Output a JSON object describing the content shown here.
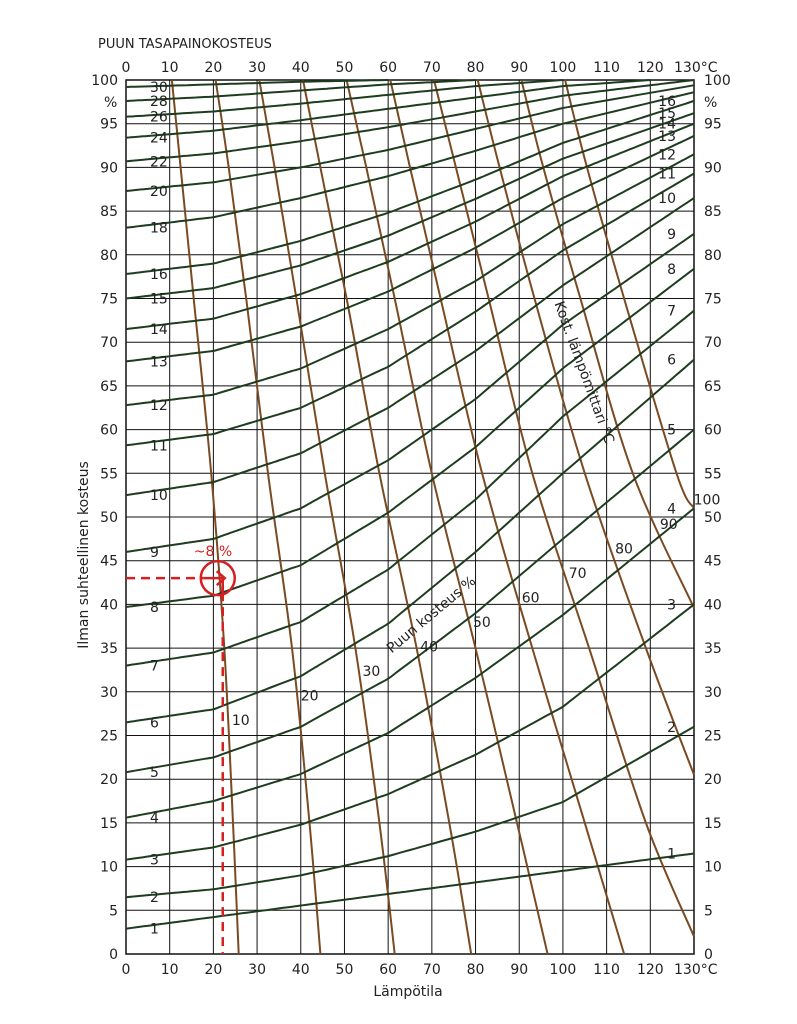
{
  "colors": {
    "background": "#ffffff",
    "grid": "#111111",
    "emc_curve": "#1e3d1e",
    "wetbulb_curve": "#7a4a22",
    "marker": "#d42020",
    "text": "#222222"
  },
  "chart_data": {
    "type": "line",
    "title": "PUUN TASAPAINOKOSTEUS",
    "xlabel": "Lämpötila",
    "ylabel": "Ilman suhteellinen kosteus",
    "xlim": [
      0,
      130
    ],
    "ylim": [
      0,
      100
    ],
    "x_unit_label": "130°C",
    "y_unit_label": "%",
    "x_ticks": [
      0,
      10,
      20,
      30,
      40,
      50,
      60,
      70,
      80,
      90,
      100,
      110,
      120
    ],
    "y_ticks": [
      0,
      5,
      10,
      15,
      20,
      25,
      30,
      35,
      40,
      45,
      50,
      55,
      60,
      65,
      70,
      75,
      80,
      85,
      90,
      95,
      100
    ],
    "x_tick_labels": [
      "0",
      "10",
      "20",
      "30",
      "40",
      "50",
      "60",
      "70",
      "80",
      "90",
      "100",
      "110",
      "120"
    ],
    "y_tick_labels": [
      "0",
      "5",
      "10",
      "15",
      "20",
      "25",
      "30",
      "35",
      "40",
      "45",
      "50",
      "55",
      "60",
      "65",
      "70",
      "75",
      "80",
      "85",
      "90",
      "95",
      "100"
    ],
    "grid": true,
    "emc_family_label": "Puun kosteus %",
    "wetbulb_family_label": "Kost. lämpömittari °C",
    "emc_series": [
      {
        "name": "1",
        "left_label": "1",
        "right_label": "1",
        "x": [
          0,
          130
        ],
        "y": [
          2.9,
          11.5
        ]
      },
      {
        "name": "2",
        "left_label": "2",
        "right_label": "2",
        "x": [
          0,
          20,
          40,
          60,
          80,
          100,
          130
        ],
        "y": [
          6.5,
          7.4,
          9.0,
          11.2,
          14.0,
          17.4,
          26.0
        ]
      },
      {
        "name": "3",
        "left_label": "3",
        "right_label": "3",
        "x": [
          0,
          20,
          40,
          60,
          80,
          100,
          130
        ],
        "y": [
          10.8,
          12.2,
          14.8,
          18.3,
          22.8,
          28.3,
          40.0
        ]
      },
      {
        "name": "4",
        "left_label": "4",
        "right_label": "4",
        "x": [
          0,
          20,
          40,
          60,
          80,
          100,
          130
        ],
        "y": [
          15.6,
          17.5,
          20.6,
          25.3,
          31.6,
          38.8,
          51.0
        ]
      },
      {
        "name": "5",
        "left_label": "5",
        "right_label": "5",
        "x": [
          0,
          20,
          40,
          60,
          80,
          100,
          130
        ],
        "y": [
          20.8,
          22.5,
          26.0,
          31.5,
          39.0,
          47.5,
          60.0
        ]
      },
      {
        "name": "6",
        "left_label": "6",
        "right_label": "6",
        "x": [
          0,
          20,
          40,
          60,
          80,
          100,
          130
        ],
        "y": [
          26.5,
          28.0,
          31.8,
          37.8,
          46.0,
          55.0,
          68.0
        ]
      },
      {
        "name": "7",
        "left_label": "7",
        "right_label": "7",
        "x": [
          0,
          20,
          40,
          60,
          80,
          100,
          130
        ],
        "y": [
          33.0,
          34.5,
          38.0,
          44.0,
          52.0,
          61.5,
          73.6
        ]
      },
      {
        "name": "8",
        "left_label": "8",
        "right_label": "8",
        "x": [
          0,
          20,
          40,
          60,
          80,
          100,
          130
        ],
        "y": [
          39.7,
          41.0,
          44.5,
          50.5,
          58.0,
          67.0,
          78.4
        ]
      },
      {
        "name": "9",
        "left_label": "9",
        "right_label": "9",
        "x": [
          0,
          20,
          40,
          60,
          80,
          100,
          130
        ],
        "y": [
          46.0,
          47.5,
          51.0,
          56.5,
          63.5,
          72.0,
          82.4
        ]
      },
      {
        "name": "10",
        "left_label": "10",
        "right_label": "10",
        "x": [
          0,
          20,
          40,
          60,
          80,
          100,
          130
        ],
        "y": [
          52.5,
          54.0,
          57.3,
          62.5,
          69.0,
          76.5,
          86.5
        ]
      },
      {
        "name": "11",
        "left_label": "11",
        "right_label": "11",
        "x": [
          0,
          20,
          40,
          60,
          80,
          100,
          130
        ],
        "y": [
          58.2,
          59.5,
          62.5,
          67.2,
          73.5,
          80.5,
          89.3
        ]
      },
      {
        "name": "12",
        "left_label": "12",
        "right_label": "12",
        "x": [
          0,
          20,
          40,
          60,
          80,
          100,
          130
        ],
        "y": [
          62.8,
          64.0,
          67.0,
          71.5,
          77.0,
          83.5,
          91.5
        ]
      },
      {
        "name": "13",
        "left_label": "13",
        "right_label": "13",
        "x": [
          0,
          20,
          40,
          60,
          80,
          100,
          130
        ],
        "y": [
          67.8,
          69.0,
          71.8,
          75.8,
          80.8,
          86.5,
          93.6
        ]
      },
      {
        "name": "14",
        "left_label": "14",
        "right_label": "14",
        "x": [
          0,
          20,
          40,
          60,
          80,
          100,
          130
        ],
        "y": [
          71.5,
          72.7,
          75.5,
          79.2,
          83.8,
          89.0,
          95.0
        ]
      },
      {
        "name": "15",
        "left_label": "15",
        "right_label": "15",
        "x": [
          0,
          20,
          40,
          60,
          80,
          100,
          130
        ],
        "y": [
          75.0,
          76.2,
          78.8,
          82.2,
          86.4,
          91.0,
          96.2
        ]
      },
      {
        "name": "16",
        "left_label": "16",
        "right_label": "16",
        "x": [
          0,
          20,
          40,
          60,
          80,
          100,
          130
        ],
        "y": [
          77.8,
          79.0,
          81.6,
          84.8,
          88.6,
          92.8,
          97.6
        ]
      },
      {
        "name": "18",
        "left_label": "18",
        "x": [
          0,
          20,
          40,
          60,
          80,
          100,
          130
        ],
        "y": [
          83.1,
          84.3,
          86.5,
          89.0,
          91.9,
          95.0,
          98.6
        ]
      },
      {
        "name": "20",
        "left_label": "20",
        "x": [
          0,
          20,
          40,
          60,
          80,
          100,
          130
        ],
        "y": [
          87.3,
          88.3,
          90.0,
          92.0,
          94.4,
          96.8,
          99.4
        ]
      },
      {
        "name": "22",
        "left_label": "22",
        "x": [
          0,
          20,
          40,
          60,
          80,
          100,
          130
        ],
        "y": [
          90.7,
          91.6,
          93.0,
          94.6,
          96.4,
          98.2,
          100.0
        ]
      },
      {
        "name": "24",
        "left_label": "24",
        "x": [
          0,
          20,
          40,
          60,
          80,
          100,
          120
        ],
        "y": [
          93.4,
          94.2,
          95.4,
          96.7,
          98.0,
          99.3,
          100.0
        ]
      },
      {
        "name": "26",
        "left_label": "26",
        "x": [
          0,
          20,
          40,
          60,
          80,
          100
        ],
        "y": [
          95.8,
          96.4,
          97.3,
          98.3,
          99.3,
          100.0
        ]
      },
      {
        "name": "28",
        "left_label": "28",
        "x": [
          0,
          20,
          40,
          60,
          80
        ],
        "y": [
          97.6,
          98.1,
          98.8,
          99.5,
          100.0
        ]
      },
      {
        "name": "30",
        "left_label": "30",
        "x": [
          0,
          20,
          40,
          60
        ],
        "y": [
          99.2,
          99.5,
          99.8,
          100.0
        ]
      }
    ],
    "wetbulb_series": [
      {
        "name": "10",
        "label": "10",
        "x": [
          10.5,
          12.5,
          15.5,
          19.5,
          22.5,
          24.5,
          25.8
        ],
        "y": [
          100,
          90,
          75,
          55,
          35,
          15,
          0
        ]
      },
      {
        "name": "20",
        "label": "20",
        "x": [
          20.5,
          23.5,
          27.5,
          32.5,
          38.0,
          42.0,
          44.5
        ],
        "y": [
          100,
          90,
          75,
          55,
          35,
          15,
          0
        ]
      },
      {
        "name": "30",
        "label": "30",
        "x": [
          30.5,
          34.0,
          39.0,
          45.5,
          52.5,
          58.0,
          61.5
        ],
        "y": [
          100,
          90,
          75,
          55,
          35,
          15,
          0
        ]
      },
      {
        "name": "40",
        "label": "40",
        "x": [
          40.5,
          44.5,
          50.5,
          58.0,
          66.5,
          74.0,
          79.0
        ],
        "y": [
          100,
          90,
          75,
          55,
          35,
          15,
          0
        ]
      },
      {
        "name": "50",
        "label": "50",
        "x": [
          50.5,
          55.0,
          61.5,
          70.0,
          80.0,
          89.5,
          96.5
        ],
        "y": [
          100,
          90,
          75,
          55,
          35,
          15,
          0
        ]
      },
      {
        "name": "60",
        "label": "60",
        "x": [
          60.5,
          65.0,
          72.0,
          81.5,
          93.0,
          105.0,
          114.0
        ],
        "y": [
          100,
          90,
          75,
          55,
          35,
          15,
          0
        ]
      },
      {
        "name": "70",
        "label": "70",
        "x": [
          70.5,
          75.5,
          83.0,
          93.0,
          106.0,
          119.0,
          130.0
        ],
        "y": [
          100,
          90,
          75,
          55,
          35,
          15,
          2
        ]
      },
      {
        "name": "80",
        "label": "80",
        "x": [
          80.5,
          85.5,
          93.5,
          105.0,
          119.0,
          130.0
        ],
        "y": [
          100,
          90,
          75,
          55,
          35,
          20.5
        ]
      },
      {
        "name": "90",
        "label": "90",
        "x": [
          90.5,
          95.5,
          104.0,
          116.0,
          130.0
        ],
        "y": [
          100,
          90,
          75,
          55,
          39.6
        ]
      },
      {
        "name": "100",
        "label": "100",
        "x": [
          100.5,
          105.5,
          114.0,
          126.0,
          130.0
        ],
        "y": [
          100,
          90,
          75,
          55,
          51.0
        ]
      }
    ],
    "annotation": {
      "text": "~8 %",
      "temperature": 21,
      "humidity": 43
    }
  }
}
